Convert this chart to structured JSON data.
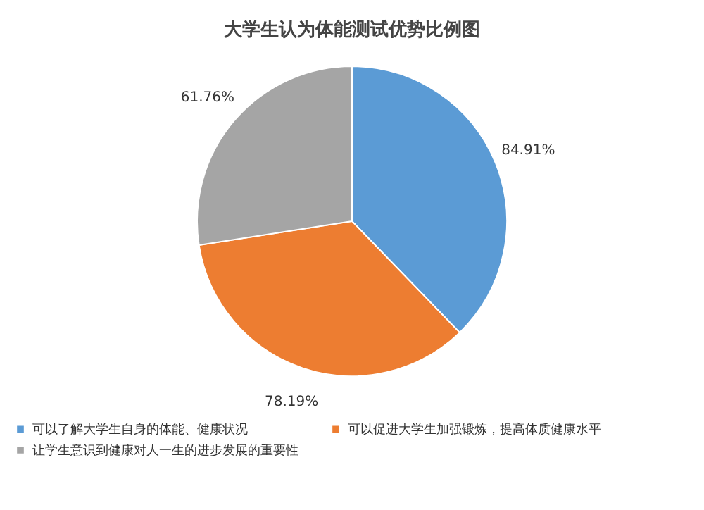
{
  "chart_data": {
    "type": "pie",
    "title": "大学生认为体能测试优势比例图",
    "categories": [
      "可以了解大学生自身的体能、健康状况",
      "可以促进大学生加强锻炼，提高体质健康水平",
      "让学生意识到健康对人一生的进步发展的重要性"
    ],
    "values": [
      84.91,
      78.19,
      61.76
    ],
    "colors": [
      "#5b9bd5",
      "#ed7d31",
      "#a5a5a5"
    ],
    "value_labels": [
      "84.91%",
      "78.19%",
      "61.76%"
    ],
    "legend": "bottom"
  }
}
